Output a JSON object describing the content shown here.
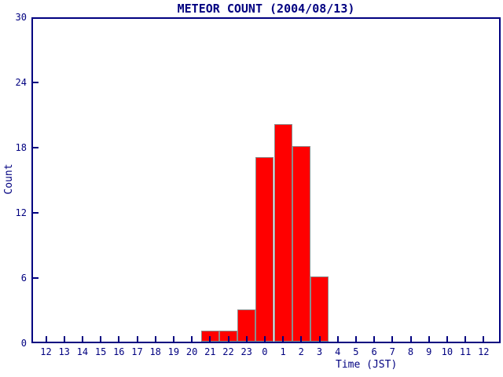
{
  "title": "METEOR COUNT (2004/08/13)",
  "colors": {
    "axis": "#000080",
    "text": "#000080",
    "bar_fill": "#ff0000",
    "bar_border": "#8c8c8c",
    "background": "#ffffff"
  },
  "chart_data": {
    "type": "bar",
    "title": "METEOR COUNT (2004/08/13)",
    "xlabel": "Time (JST)",
    "ylabel": "Count",
    "categories": [
      "12",
      "13",
      "14",
      "15",
      "16",
      "17",
      "18",
      "19",
      "20",
      "21",
      "22",
      "23",
      "0",
      "1",
      "2",
      "3",
      "4",
      "5",
      "6",
      "7",
      "8",
      "9",
      "10",
      "11",
      "12"
    ],
    "values": [
      0,
      0,
      0,
      0,
      0,
      0,
      0,
      0,
      0,
      1,
      1,
      3,
      17,
      20,
      18,
      6,
      0,
      0,
      0,
      0,
      0,
      0,
      0,
      0,
      0
    ],
    "ylim": [
      0,
      30
    ],
    "yticks": [
      0,
      6,
      12,
      18,
      24,
      30
    ],
    "grid": false,
    "legend": null
  }
}
